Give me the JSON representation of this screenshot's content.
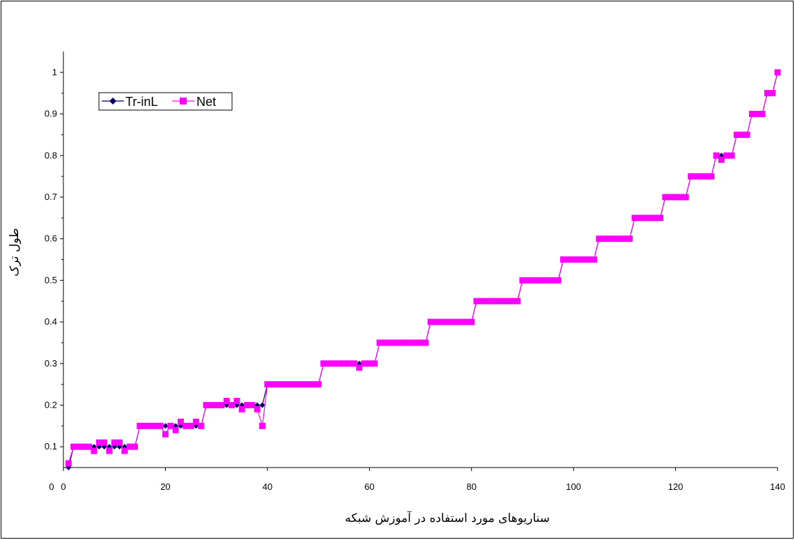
{
  "chart_data": {
    "type": "line",
    "title": "",
    "xlabel": "سناریوهای مورد استفاده در آموزش شبکه",
    "ylabel": "طول ترک",
    "xlim": [
      0,
      140
    ],
    "ylim": [
      0.05,
      1.05
    ],
    "x_ticks": [
      "0",
      "20",
      "40",
      "60",
      "80",
      "100",
      "120",
      "140"
    ],
    "y_ticks": [
      "0.1",
      "0.2",
      "0.3",
      "0.4",
      "0.5",
      "0.6",
      "0.7",
      "0.8",
      "0.9",
      "1"
    ],
    "origin_label": "0",
    "legend_position": "top-left",
    "colors": {
      "Tr-inL": "#000066",
      "Net": "#ff00ff"
    },
    "series": [
      {
        "name": "Tr-inL",
        "marker": "diamond",
        "values": [
          0.05,
          0.1,
          0.1,
          0.1,
          0.1,
          0.1,
          0.1,
          0.1,
          0.1,
          0.1,
          0.1,
          0.1,
          0.1,
          0.1,
          0.15,
          0.15,
          0.15,
          0.15,
          0.15,
          0.15,
          0.15,
          0.15,
          0.15,
          0.15,
          0.15,
          0.15,
          0.15,
          0.2,
          0.2,
          0.2,
          0.2,
          0.2,
          0.2,
          0.2,
          0.2,
          0.2,
          0.2,
          0.2,
          0.2,
          0.25,
          0.25,
          0.25,
          0.25,
          0.25,
          0.25,
          0.25,
          0.25,
          0.25,
          0.25,
          0.25,
          0.3,
          0.3,
          0.3,
          0.3,
          0.3,
          0.3,
          0.3,
          0.3,
          0.3,
          0.3,
          0.3,
          0.35,
          0.35,
          0.35,
          0.35,
          0.35,
          0.35,
          0.35,
          0.35,
          0.35,
          0.35,
          0.4,
          0.4,
          0.4,
          0.4,
          0.4,
          0.4,
          0.4,
          0.4,
          0.4,
          0.45,
          0.45,
          0.45,
          0.45,
          0.45,
          0.45,
          0.45,
          0.45,
          0.45,
          0.5,
          0.5,
          0.5,
          0.5,
          0.5,
          0.5,
          0.5,
          0.5,
          0.55,
          0.55,
          0.55,
          0.55,
          0.55,
          0.55,
          0.55,
          0.6,
          0.6,
          0.6,
          0.6,
          0.6,
          0.6,
          0.6,
          0.65,
          0.65,
          0.65,
          0.65,
          0.65,
          0.65,
          0.7,
          0.7,
          0.7,
          0.7,
          0.7,
          0.75,
          0.75,
          0.75,
          0.75,
          0.75,
          0.8,
          0.8,
          0.8,
          0.8,
          0.85,
          0.85,
          0.85,
          0.9,
          0.9,
          0.9,
          0.95,
          0.95,
          1.0
        ]
      },
      {
        "name": "Net",
        "marker": "square",
        "values": [
          0.06,
          0.1,
          0.1,
          0.1,
          0.1,
          0.09,
          0.11,
          0.11,
          0.09,
          0.11,
          0.11,
          0.09,
          0.1,
          0.1,
          0.15,
          0.15,
          0.15,
          0.15,
          0.15,
          0.13,
          0.15,
          0.14,
          0.16,
          0.15,
          0.15,
          0.16,
          0.15,
          0.2,
          0.2,
          0.2,
          0.2,
          0.21,
          0.2,
          0.21,
          0.19,
          0.2,
          0.2,
          0.19,
          0.15,
          0.25,
          0.25,
          0.25,
          0.25,
          0.25,
          0.25,
          0.25,
          0.25,
          0.25,
          0.25,
          0.25,
          0.3,
          0.3,
          0.3,
          0.3,
          0.3,
          0.3,
          0.3,
          0.29,
          0.3,
          0.3,
          0.3,
          0.35,
          0.35,
          0.35,
          0.35,
          0.35,
          0.35,
          0.35,
          0.35,
          0.35,
          0.35,
          0.4,
          0.4,
          0.4,
          0.4,
          0.4,
          0.4,
          0.4,
          0.4,
          0.4,
          0.45,
          0.45,
          0.45,
          0.45,
          0.45,
          0.45,
          0.45,
          0.45,
          0.45,
          0.5,
          0.5,
          0.5,
          0.5,
          0.5,
          0.5,
          0.5,
          0.5,
          0.55,
          0.55,
          0.55,
          0.55,
          0.55,
          0.55,
          0.55,
          0.6,
          0.6,
          0.6,
          0.6,
          0.6,
          0.6,
          0.6,
          0.65,
          0.65,
          0.65,
          0.65,
          0.65,
          0.65,
          0.7,
          0.7,
          0.7,
          0.7,
          0.7,
          0.75,
          0.75,
          0.75,
          0.75,
          0.75,
          0.8,
          0.79,
          0.8,
          0.8,
          0.85,
          0.85,
          0.85,
          0.9,
          0.9,
          0.9,
          0.95,
          0.95,
          1.0
        ]
      }
    ]
  }
}
